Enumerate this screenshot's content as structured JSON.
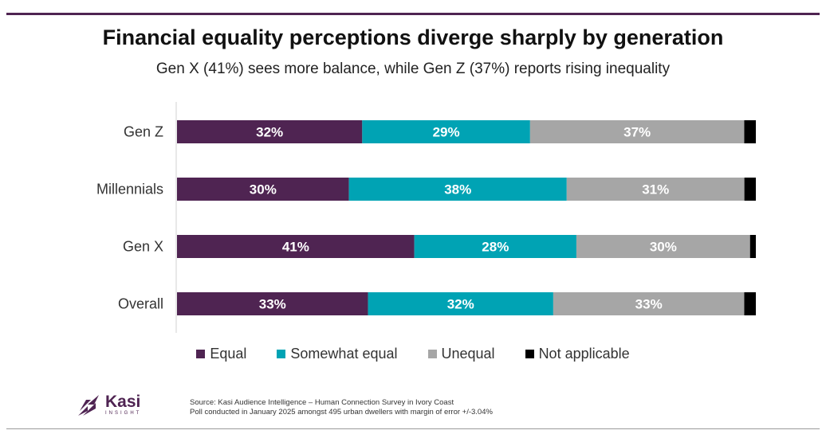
{
  "title": "Financial equality perceptions diverge sharply by generation",
  "subtitle": "Gen X (41%) sees more balance, while Gen Z (37%) reports rising inequality",
  "colors": {
    "equal": "#4f2452",
    "somewhat_equal": "#00a3b4",
    "unequal": "#a6a6a6",
    "not_applicable": "#000000",
    "brand": "#4f2452"
  },
  "chart_data": {
    "type": "bar",
    "orientation": "horizontal",
    "stacked": true,
    "normalized": true,
    "categories": [
      "Gen Z",
      "Millennials",
      "Gen X",
      "Overall"
    ],
    "series": [
      {
        "name": "Equal",
        "values": [
          32,
          30,
          41,
          33
        ]
      },
      {
        "name": "Somewhat equal",
        "values": [
          29,
          38,
          28,
          32
        ]
      },
      {
        "name": "Unequal",
        "values": [
          37,
          31,
          30,
          33
        ]
      },
      {
        "name": "Not applicable",
        "values": [
          2,
          2,
          1,
          2
        ]
      }
    ],
    "data_labels": [
      [
        "32%",
        "29%",
        "37%"
      ],
      [
        "30%",
        "38%",
        "31%"
      ],
      [
        "41%",
        "28%",
        "30%"
      ],
      [
        "33%",
        "32%",
        "33%"
      ]
    ],
    "legend_position": "bottom",
    "xlim": [
      0,
      100
    ],
    "grid": false
  },
  "legend": [
    "Equal",
    "Somewhat equal",
    "Unequal",
    "Not applicable"
  ],
  "logo": {
    "name": "Kasi",
    "tagline": "INSIGHT"
  },
  "source": {
    "line1": "Source: Kasi Audience Intelligence – Human Connection Survey in Ivory Coast",
    "line2": "Poll conducted in January 2025 amongst 495 urban dwellers with margin of error +/-3.04%"
  }
}
